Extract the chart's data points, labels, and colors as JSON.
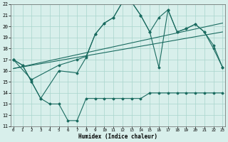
{
  "xlabel": "Humidex (Indice chaleur)",
  "xlim": [
    -0.3,
    23.3
  ],
  "ylim": [
    11,
    22
  ],
  "xticks": [
    0,
    1,
    2,
    3,
    4,
    5,
    6,
    7,
    8,
    9,
    10,
    11,
    12,
    13,
    14,
    15,
    16,
    17,
    18,
    19,
    20,
    21,
    22,
    23
  ],
  "yticks": [
    11,
    12,
    13,
    14,
    15,
    16,
    17,
    18,
    19,
    20,
    21,
    22
  ],
  "bg_color": "#d8efeb",
  "grid_color": "#a8d5cc",
  "line_color": "#1a6b60",
  "figsize": [
    3.2,
    2.0
  ],
  "dpi": 100,
  "line1_x": [
    0,
    1,
    2,
    3,
    4,
    5,
    6,
    7,
    8,
    9,
    10,
    11,
    12,
    13,
    14,
    15,
    16,
    17,
    18,
    19,
    20,
    21,
    22,
    23
  ],
  "line1_y": [
    17,
    16.5,
    15,
    13.5,
    13,
    13,
    11.5,
    11.5,
    13.5,
    13.5,
    13.5,
    13.5,
    13.5,
    13.5,
    13.5,
    14,
    14,
    14,
    14,
    14,
    14,
    14,
    14,
    14
  ],
  "line2_x": [
    0,
    2,
    5,
    7,
    8,
    9,
    10,
    11,
    12,
    13,
    14,
    15,
    16,
    17,
    18,
    19,
    20,
    21,
    22,
    23
  ],
  "line2_y": [
    17,
    15.2,
    16.5,
    17.0,
    17.3,
    19.3,
    20.3,
    20.8,
    22.2,
    22.2,
    21.0,
    19.5,
    20.8,
    21.5,
    19.5,
    19.8,
    20.2,
    19.5,
    18.0,
    16.3
  ],
  "line3_x": [
    0,
    1,
    2,
    3,
    5,
    7,
    8,
    9,
    10,
    11,
    12,
    13,
    14,
    15,
    16,
    17,
    18,
    19,
    20,
    21,
    22,
    23
  ],
  "line3_y": [
    17,
    16.5,
    15,
    13.5,
    16,
    15.8,
    17.2,
    19.3,
    20.3,
    20.8,
    22.2,
    22.2,
    21.0,
    19.5,
    16.3,
    21.5,
    19.5,
    19.8,
    20.2,
    19.5,
    18.3,
    16.3
  ],
  "line4_x": [
    0,
    23
  ],
  "line4_y": [
    16.2,
    20.3
  ],
  "line5_x": [
    0,
    23
  ],
  "line5_y": [
    16.2,
    19.5
  ]
}
